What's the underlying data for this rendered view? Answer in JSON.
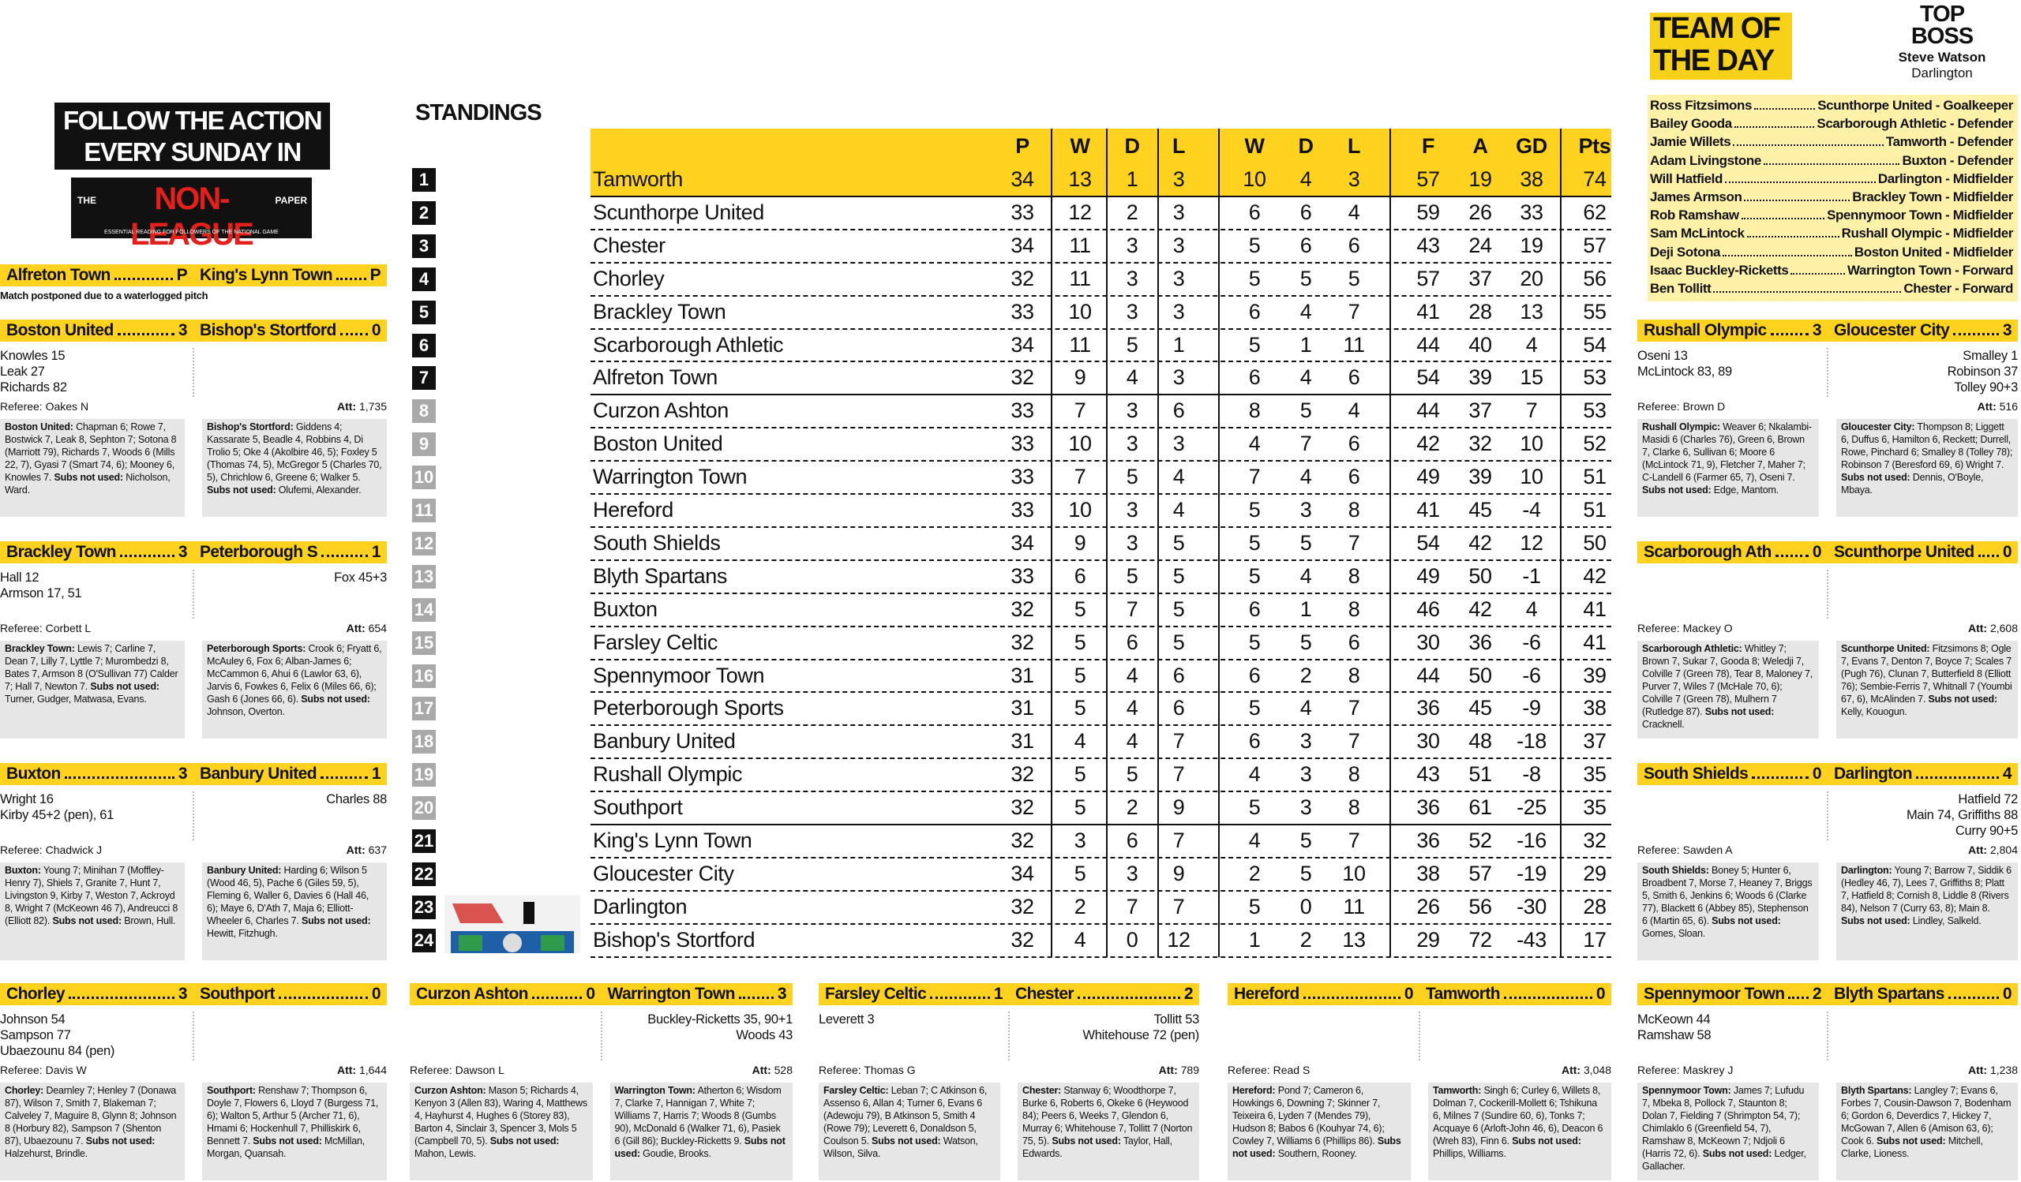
{
  "team_of_the_day": {
    "title": "TEAM OF THE DAY",
    "top_boss": {
      "label": "TOP BOSS",
      "name": "Steve Watson",
      "club": "Darlington"
    },
    "players": [
      {
        "name": "Ross Fitzsimons",
        "detail": "Scunthorpe United - Goalkeeper"
      },
      {
        "name": "Bailey Gooda",
        "detail": "Scarborough Athletic - Defender"
      },
      {
        "name": "Jamie Willets",
        "detail": "Tamworth - Defender"
      },
      {
        "name": "Adam Livingstone",
        "detail": "Buxton - Defender"
      },
      {
        "name": "Will Hatfield",
        "detail": "Darlington - Midfielder"
      },
      {
        "name": "James Armson",
        "detail": "Brackley Town - Midfielder"
      },
      {
        "name": "Rob Ramshaw",
        "detail": "Spennymoor Town - Midfielder"
      },
      {
        "name": "Sam McLintock",
        "detail": "Rushall Olympic - Midfielder"
      },
      {
        "name": "Deji Sotona",
        "detail": "Boston United - Midfielder"
      },
      {
        "name": "Isaac Buckley-Ricketts",
        "detail": "Warrington Town - Forward"
      },
      {
        "name": "Ben Tollitt",
        "detail": "Chester - Forward"
      }
    ]
  },
  "promo": {
    "headline": "FOLLOW THE ACTION EVERY SUNDAY IN",
    "logo_the": "THE",
    "logo_name": "NON-LEAGUE",
    "logo_paper": "PAPER",
    "logo_tagline": "ESSENTIAL READING FOR FOLLOWERS OF THE NATIONAL GAME"
  },
  "labels": {
    "referee": "Referee:",
    "attendance": "Att:",
    "subs": "Subs not used:"
  },
  "standings": {
    "title": "STANDINGS",
    "columns": [
      "P",
      "W",
      "D",
      "L",
      "W",
      "D",
      "L",
      "F",
      "A",
      "GD",
      "Pts"
    ],
    "rows": [
      {
        "pos": 1,
        "team": "Tamworth",
        "stats": [
          34,
          13,
          1,
          3,
          10,
          4,
          3,
          57,
          19,
          38,
          74
        ]
      },
      {
        "pos": 2,
        "team": "Scunthorpe United",
        "stats": [
          33,
          12,
          2,
          3,
          6,
          6,
          4,
          59,
          26,
          33,
          62
        ]
      },
      {
        "pos": 3,
        "team": "Chester",
        "stats": [
          34,
          11,
          3,
          3,
          5,
          6,
          6,
          43,
          24,
          19,
          57
        ]
      },
      {
        "pos": 4,
        "team": "Chorley",
        "stats": [
          32,
          11,
          3,
          3,
          5,
          5,
          5,
          57,
          37,
          20,
          56
        ]
      },
      {
        "pos": 5,
        "team": "Brackley Town",
        "stats": [
          33,
          10,
          3,
          3,
          6,
          4,
          7,
          41,
          28,
          13,
          55
        ]
      },
      {
        "pos": 6,
        "team": "Scarborough Athletic",
        "stats": [
          34,
          11,
          5,
          1,
          5,
          1,
          11,
          44,
          40,
          4,
          54
        ]
      },
      {
        "pos": 7,
        "team": "Alfreton Town",
        "stats": [
          32,
          9,
          4,
          3,
          6,
          4,
          6,
          54,
          39,
          15,
          53
        ]
      },
      {
        "pos": 8,
        "team": "Curzon Ashton",
        "stats": [
          33,
          7,
          3,
          6,
          8,
          5,
          4,
          44,
          37,
          7,
          53
        ]
      },
      {
        "pos": 9,
        "team": "Boston United",
        "stats": [
          33,
          10,
          3,
          3,
          4,
          7,
          6,
          42,
          32,
          10,
          52
        ]
      },
      {
        "pos": 10,
        "team": "Warrington Town",
        "stats": [
          33,
          7,
          5,
          4,
          7,
          4,
          6,
          49,
          39,
          10,
          51
        ]
      },
      {
        "pos": 11,
        "team": "Hereford",
        "stats": [
          33,
          10,
          3,
          4,
          5,
          3,
          8,
          41,
          45,
          -4,
          51
        ]
      },
      {
        "pos": 12,
        "team": "South Shields",
        "stats": [
          34,
          9,
          3,
          5,
          5,
          5,
          7,
          54,
          42,
          12,
          50
        ]
      },
      {
        "pos": 13,
        "team": "Blyth Spartans",
        "stats": [
          33,
          6,
          5,
          5,
          5,
          4,
          8,
          49,
          50,
          -1,
          42
        ]
      },
      {
        "pos": 14,
        "team": "Buxton",
        "stats": [
          32,
          5,
          7,
          5,
          6,
          1,
          8,
          46,
          42,
          4,
          41
        ]
      },
      {
        "pos": 15,
        "team": "Farsley Celtic",
        "stats": [
          32,
          5,
          6,
          5,
          5,
          5,
          6,
          30,
          36,
          -6,
          41
        ]
      },
      {
        "pos": 16,
        "team": "Spennymoor Town",
        "stats": [
          31,
          5,
          4,
          6,
          6,
          2,
          8,
          44,
          50,
          -6,
          39
        ]
      },
      {
        "pos": 17,
        "team": "Peterborough Sports",
        "stats": [
          31,
          5,
          4,
          6,
          5,
          4,
          7,
          36,
          45,
          -9,
          38
        ]
      },
      {
        "pos": 18,
        "team": "Banbury United",
        "stats": [
          31,
          4,
          4,
          7,
          6,
          3,
          7,
          30,
          48,
          -18,
          37
        ]
      },
      {
        "pos": 19,
        "team": "Rushall Olympic",
        "stats": [
          32,
          5,
          5,
          7,
          4,
          3,
          8,
          43,
          51,
          -8,
          35
        ]
      },
      {
        "pos": 20,
        "team": "Southport",
        "stats": [
          32,
          5,
          2,
          9,
          5,
          3,
          8,
          36,
          61,
          -25,
          35
        ]
      },
      {
        "pos": 21,
        "team": "King's Lynn Town",
        "stats": [
          32,
          3,
          6,
          7,
          4,
          5,
          7,
          36,
          52,
          -16,
          32
        ]
      },
      {
        "pos": 22,
        "team": "Gloucester City",
        "stats": [
          34,
          5,
          3,
          9,
          2,
          5,
          10,
          38,
          57,
          -19,
          29
        ]
      },
      {
        "pos": 23,
        "team": "Darlington",
        "stats": [
          32,
          2,
          7,
          7,
          5,
          0,
          11,
          26,
          56,
          -30,
          28
        ]
      },
      {
        "pos": 24,
        "team": "Bishop's Stortford",
        "stats": [
          32,
          4,
          0,
          12,
          1,
          2,
          13,
          29,
          72,
          -43,
          17
        ]
      }
    ]
  },
  "matches": [
    {
      "home": "Alfreton Town",
      "home_score": "P",
      "away": "King's Lynn Town",
      "away_score": "P",
      "note": "Match postponed due to a waterlogged pitch"
    },
    {
      "home": "Boston United",
      "home_score": 3,
      "away": "Bishop's Stortford",
      "away_score": 0,
      "home_scorers": [
        "Knowles 15",
        "Leak 27",
        "Richards 82"
      ],
      "away_scorers": [],
      "referee": "Oakes N",
      "attendance": "1,735",
      "home_lineup": {
        "team": "Boston United:",
        "players": "Chapman 6; Rowe 7, Bostwick 7, Leak 8, Sephton 7; Sotona 8 (Marriott 79), Richards 7, Woods 6 (Mills 22, 7), Gyasi 7 (Smart 74, 6); Mooney 6, Knowles 7.",
        "subs": "Nicholson, Ward."
      },
      "away_lineup": {
        "team": "Bishop's Stortford:",
        "players": "Giddens 4; Kassarate 5, Beadle 4, Robbins 4, Di Trolio 5; Oke 4 (Akolbire 46, 5); Foxley 5 (Thomas 74, 5), McGregor 5 (Charles 70, 5), Chrichlow 6, Greene 6; Walker 5.",
        "subs": "Olufemi, Alexander."
      }
    },
    {
      "home": "Brackley Town",
      "home_score": 3,
      "away": "Peterborough S",
      "away_score": 1,
      "home_scorers": [
        "Hall 12",
        "Armson 17, 51"
      ],
      "away_scorers": [
        "Fox 45+3"
      ],
      "referee": "Corbett L",
      "attendance": "654",
      "home_lineup": {
        "team": "Brackley Town:",
        "players": "Lewis 7; Carline 7, Dean 7, Lilly 7, Lyttle 7; Murombedzi 8, Bates 7, Armson 8 (O'Sullivan 77) Calder 7; Hall 7, Newton 7.",
        "subs": "Turner, Gudger, Matwasa, Evans."
      },
      "away_lineup": {
        "team": "Peterborough Sports:",
        "players": "Crook 6; Fryatt 6, McAuley 6, Fox 6; Alban-James 6; McCammon 6, Ahui 6 (Lawlor 63, 6), Jarvis 6, Fowkes 6, Felix 6 (Miles 66, 6); Gash 6 (Jones 66, 6).",
        "subs": "Johnson, Overton."
      }
    },
    {
      "home": "Buxton",
      "home_score": 3,
      "away": "Banbury United",
      "away_score": 1,
      "home_scorers": [
        "Wright 16",
        "Kirby 45+2 (pen), 61"
      ],
      "away_scorers": [
        "Charles 88"
      ],
      "referee": "Chadwick J",
      "attendance": "637",
      "home_lineup": {
        "team": "Buxton:",
        "players": "Young 7; Minihan 7 (Moffley-Henry 7), Shiels 7, Granite 7, Hunt 7, Livingston 9, Kirby 7, Weston 7, Ackroyd 8, Wright 7 (McKeown 46 7), Andreucci 8 (Elliott 82).",
        "subs": "Brown, Hull."
      },
      "away_lineup": {
        "team": "Banbury United:",
        "players": "Harding 6; Wilson 5 (Wood 46, 5), Pache 6 (Giles 59, 5), Fleming 6, Waller 6, Davies 6 (Hall 46, 6); Maye 6, D'Ath 7, Maja 6; Elliott-Wheeler 6, Charles 7.",
        "subs": "Hewitt, Fitzhugh."
      }
    },
    {
      "home": "Rushall Olympic",
      "home_score": 3,
      "away": "Gloucester City",
      "away_score": 3,
      "home_scorers": [
        "Oseni 13",
        "McLintock 83, 89"
      ],
      "away_scorers": [
        "Smalley 1",
        "Robinson 37",
        "Tolley 90+3"
      ],
      "referee": "Brown D",
      "attendance": "516",
      "home_lineup": {
        "team": "Rushall Olympic:",
        "players": "Weaver 6; Nkalambi-Masidi 6 (Charles 76), Green 6, Brown 7, Clarke 6, Sullivan 6; Moore 6 (McLintock 71, 9), Fletcher 7, Maher 7; C-Landell 6 (Farmer 65, 7), Oseni 7.",
        "subs": "Edge, Mantom."
      },
      "away_lineup": {
        "team": "Gloucester City:",
        "players": "Thompson 8; Liggett 6, Duffus 6, Hamilton 6, Reckett; Durrell, Rowe, Pinchard 6; Smalley 8 (Tolley 78); Robinson 7 (Beresford 69, 6) Wright 7.",
        "subs": "Dennis, O'Boyle, Mbaya."
      }
    },
    {
      "home": "Scarborough Ath",
      "home_score": 0,
      "away": "Scunthorpe United",
      "away_score": 0,
      "home_scorers": [],
      "away_scorers": [],
      "referee": "Mackey O",
      "attendance": "2,608",
      "home_lineup": {
        "team": "Scarborough Athletic:",
        "players": "Whitley 7; Brown 7, Sukar 7, Gooda 8; Weledji 7, Colville 7 (Green 78), Tear 8, Maloney 7, Purver 7, Wiles 7 (McHale 70, 6); Colville 7 (Green 78), Mulhern 7 (Rutledge 87).",
        "subs": "Cracknell."
      },
      "away_lineup": {
        "team": "Scunthorpe United:",
        "players": "Fitzsimons 8; Ogle 7, Evans 7, Denton 7, Boyce 7; Scales 7 (Pugh 76), Clunan 7, Butterfield 8 (Elliott 76); Sembie-Ferris 7, Whitnall 7 (Youmbi 67, 6), McAlinden 7.",
        "subs": "Kelly, Kouogun."
      }
    },
    {
      "home": "South Shields",
      "home_score": 0,
      "away": "Darlington",
      "away_score": 4,
      "home_scorers": [],
      "away_scorers": [
        "Hatfield 72",
        "Main 74, Griffiths 88",
        "Curry 90+5"
      ],
      "referee": "Sawden A",
      "attendance": "2,804",
      "home_lineup": {
        "team": "South Shields:",
        "players": "Boney 5; Hunter 6, Broadbent 7, Morse 7, Heaney 7, Briggs 5, Smith 6, Jenkins 6; Woods 6 (Clarke 77), Blackett 6 (Abbey 85), Stephenson 6 (Martin 65, 6).",
        "subs": "Gomes, Sloan."
      },
      "away_lineup": {
        "team": "Darlington:",
        "players": "Young 7; Barrow 7, Siddik 6 (Hedley 46, 7), Lees 7, Griffiths 8; Platt 7, Hatfield 8; Cornish 8, Liddle 8 (Rivers 84), Nelson 7 (Curry 63, 8); Main 8.",
        "subs": "Lindley, Salkeld."
      }
    },
    {
      "home": "Chorley",
      "home_score": 3,
      "away": "Southport",
      "away_score": 0,
      "home_scorers": [
        "Johnson 54",
        "Sampson 77",
        "Ubaezounu 84 (pen)"
      ],
      "away_scorers": [],
      "referee": "Davis W",
      "attendance": "1,644",
      "home_lineup": {
        "team": "Chorley:",
        "players": "Dearnley 7; Henley 7 (Donawa 87), Wilson 7, Smith 7, Blakeman 7; Calveley 7, Maguire 8, Glynn 8; Johnson 8 (Horbury 82), Sampson 7 (Shenton 87), Ubaezounu 7.",
        "subs": "Halzehurst, Brindle."
      },
      "away_lineup": {
        "team": "Southport:",
        "players": "Renshaw 7; Thompson 6, Doyle 7, Flowers 6, Lloyd 7 (Burgess 71, 6); Walton 5, Arthur 5 (Archer 71, 6), Hmami 6; Hockenhull 7, Philliskirk 6, Bennett 7.",
        "subs": "McMillan, Morgan, Quansah."
      }
    },
    {
      "home": "Curzon Ashton",
      "home_score": 0,
      "away": "Warrington Town",
      "away_score": 3,
      "home_scorers": [],
      "away_scorers": [
        "Buckley-Ricketts 35, 90+1",
        "Woods 43"
      ],
      "referee": "Dawson L",
      "attendance": "528",
      "home_lineup": {
        "team": "Curzon Ashton:",
        "players": "Mason 5; Richards 4, Kenyon 3 (Allen 83), Waring 4, Matthews 4, Hayhurst 4, Hughes 6 (Storey 83), Barton 4, Sinclair 3, Spencer 3, Mols 5 (Campbell 70, 5).",
        "subs": "Mahon, Lewis."
      },
      "away_lineup": {
        "team": "Warrington Town:",
        "players": "Atherton 6; Wisdom 7, Clarke 7, Hannigan 7, White 7; Williams 7, Harris 7; Woods 8 (Gumbs 90), McDonald 6 (Walker 71, 6), Pasiek 6 (Gill 86); Buckley-Ricketts 9.",
        "subs": "Goudie, Brooks."
      }
    },
    {
      "home": "Farsley Celtic",
      "home_score": 1,
      "away": "Chester",
      "away_score": 2,
      "home_scorers": [
        "Leverett 3"
      ],
      "away_scorers": [
        "Tollitt 53",
        "Whitehouse 72 (pen)"
      ],
      "referee": "Thomas G",
      "attendance": "789",
      "home_lineup": {
        "team": "Farsley Celtic:",
        "players": "Leban 7; C Atkinson 6, Assenso 6, Allan 4; Turner 6, Evans 6 (Adewoju 79), B Atkinson 5, Smith 4 (Rowe 79); Leverett 6, Donaldson 5, Coulson 5.",
        "subs": "Watson, Wilson, Silva."
      },
      "away_lineup": {
        "team": "Chester:",
        "players": "Stanway 6; Woodthorpe 7, Burke 6, Roberts 6, Okeke 6 (Heywood 84); Peers 6, Weeks 7, Glendon 6, Murray 6; Whitehouse 7, Tollitt 7 (Norton 75, 5).",
        "subs": "Taylor, Hall, Edwards."
      }
    },
    {
      "home": "Hereford",
      "home_score": 0,
      "away": "Tamworth",
      "away_score": 0,
      "home_scorers": [],
      "away_scorers": [],
      "referee": "Read S",
      "attendance": "3,048",
      "home_lineup": {
        "team": "Hereford:",
        "players": "Pond 7; Cameron 6, Howkings 6, Downing 7; Skinner 7, Teixeira 6, Lyden 7 (Mendes 79), Hudson 8; Babos 6 (Kouhyar 74, 6); Cowley 7, Williams 6 (Phillips 86).",
        "subs": "Southern, Rooney."
      },
      "away_lineup": {
        "team": "Tamworth:",
        "players": "Singh 6; Curley 6, Willets 8, Dolman 7, Cockerill-Mollett 6; Tshikuna 6, Milnes 7 (Sundire 60, 6), Tonks 7; Acquaye 6 (Arloft-John 46, 6), Deacon 6 (Wreh 83), Finn 6.",
        "subs": "Phillips, Williams."
      }
    },
    {
      "home": "Spennymoor Town",
      "home_score": 2,
      "away": "Blyth Spartans",
      "away_score": 0,
      "home_scorers": [
        "McKeown 44",
        "Ramshaw 58"
      ],
      "away_scorers": [],
      "referee": "Maskrey J",
      "attendance": "1,238",
      "home_lineup": {
        "team": "Spennymoor Town:",
        "players": "James 7; Lufudu 7, Mbeka 8, Pollock 7, Staunton 8; Dolan 7, Fielding 7 (Shrimpton 54, 7); Chimlaklo 6 (Greenfield 54, 7), Ramshaw 8, McKeown 7; Ndjoli 6 (Harris 72, 6).",
        "subs": "Ledger, Gallacher."
      },
      "away_lineup": {
        "team": "Blyth Spartans:",
        "players": "Langley 7; Evans 6, Forbes 7, Cousin-Dawson 7, Bodenham 6; Gordon 6, Deverdics 7, Hickey 7, McGowan 7, Allen 6 (Amison 63, 6); Cook 6.",
        "subs": "Mitchell, Clarke, Lioness."
      }
    }
  ]
}
